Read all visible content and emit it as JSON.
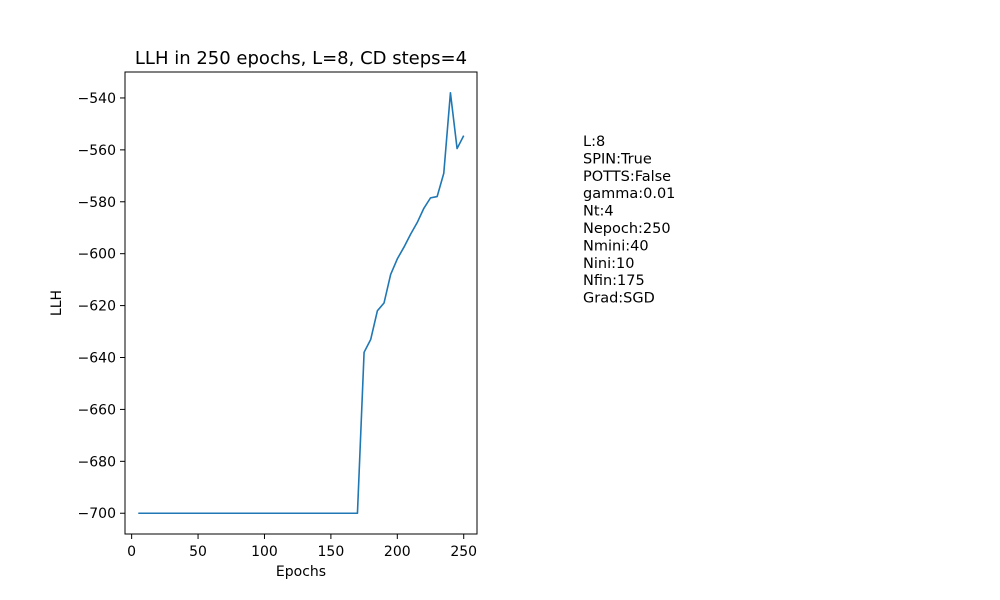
{
  "chart_data": {
    "type": "line",
    "title": "LLH in 250 epochs, L=8, CD steps=4",
    "xlabel": "Epochs",
    "ylabel": "LLH",
    "xlim": [
      -5,
      260
    ],
    "ylim": [
      -708,
      -530
    ],
    "xticks": [
      0,
      50,
      100,
      150,
      200,
      250
    ],
    "yticks": [
      -700,
      -680,
      -660,
      -640,
      -620,
      -600,
      -580,
      -560,
      -540
    ],
    "grid": false,
    "line_color": "#1f77b4",
    "series": [
      {
        "x": [
          5,
          170,
          175,
          180,
          185,
          190,
          195,
          200,
          205,
          210,
          215,
          220,
          225,
          230,
          235,
          240,
          245,
          250
        ],
        "y": [
          -700,
          -700,
          -638,
          -633,
          -622,
          -619,
          -608,
          -602,
          -597.5,
          -592.5,
          -588,
          -582.5,
          -578.5,
          -578,
          -569,
          -538,
          -559.5,
          -554.5
        ]
      }
    ]
  },
  "params": [
    "L:8",
    "SPIN:True",
    "POTTS:False",
    "gamma:0.01",
    "Nt:4",
    "Nepoch:250",
    "Nmini:40",
    "Nini:10",
    "Nfin:175",
    "Grad:SGD"
  ]
}
